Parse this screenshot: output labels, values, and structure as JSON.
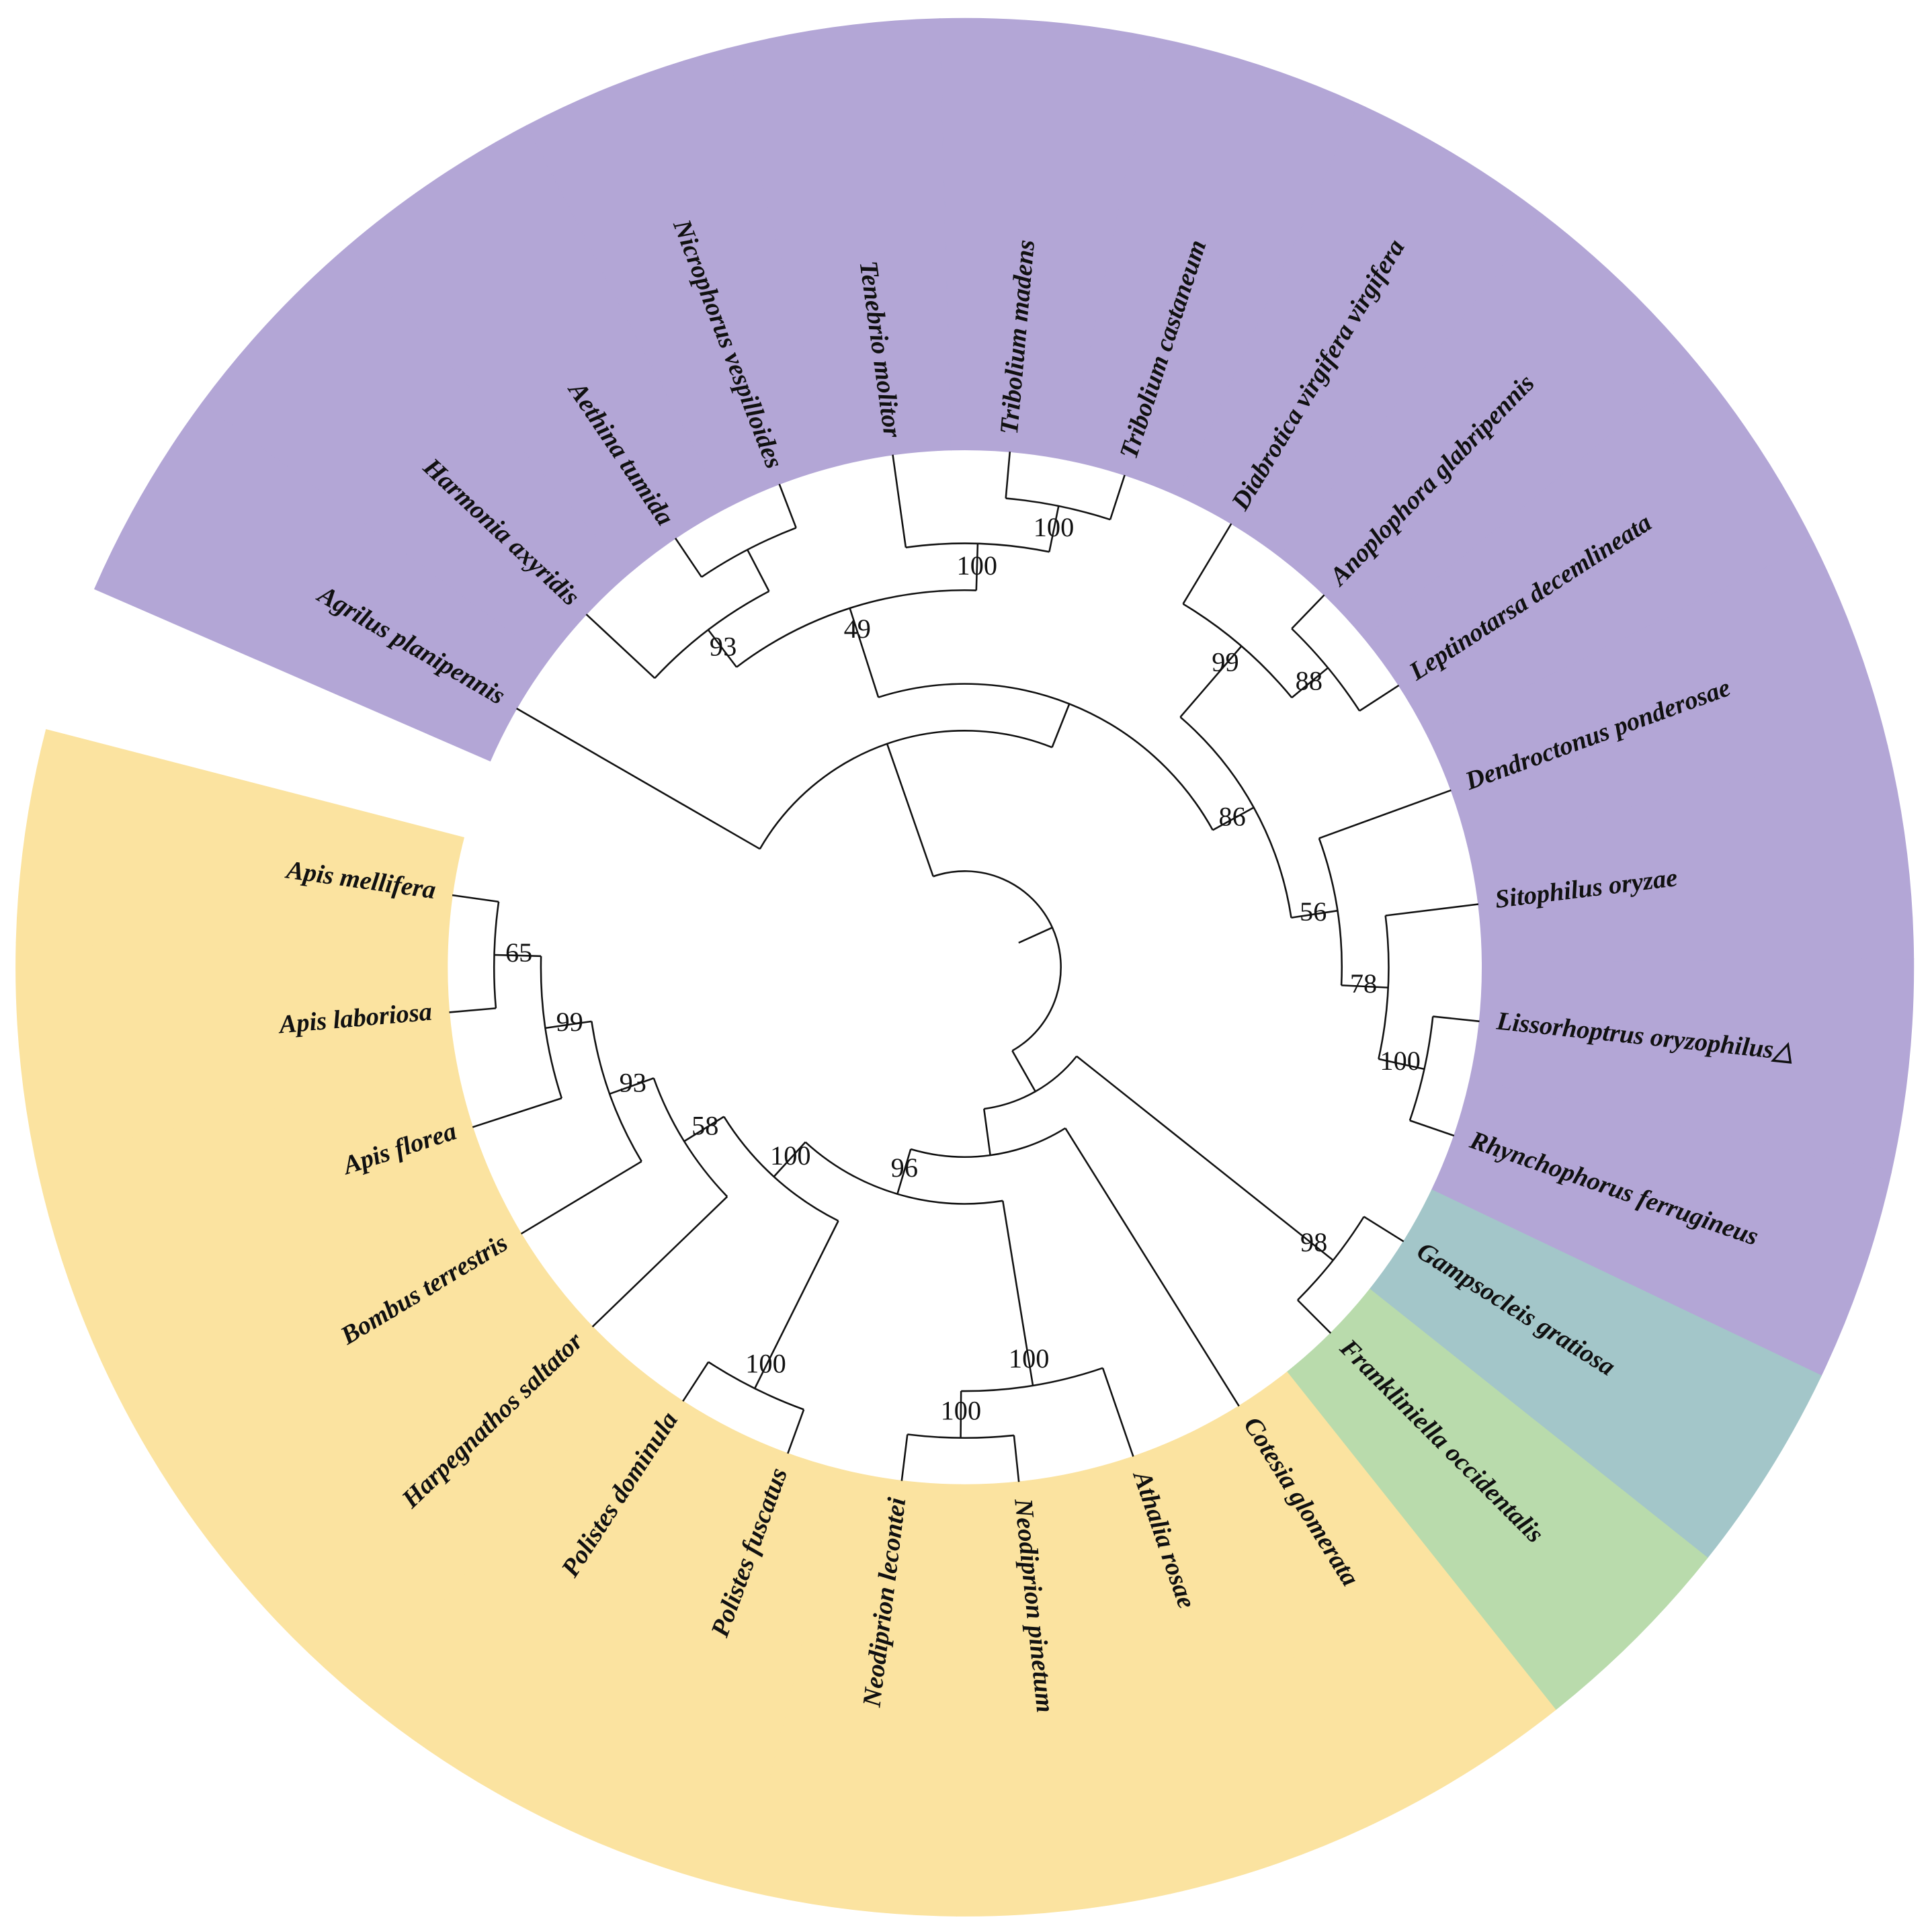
{
  "tree": {
    "children": [
      {
        "children": [
          {
            "name": "Agrilus planipennis",
            "color": "#b3a6d6"
          },
          {
            "children": [
              {
                "support": 49,
                "children": [
                  {
                    "support": 93,
                    "children": [
                      {
                        "name": "Harmonia axyridis",
                        "color": "#b3a6d6"
                      },
                      {
                        "children": [
                          {
                            "name": "Aethina tumida",
                            "color": "#b3a6d6"
                          },
                          {
                            "name": "Nicrophorus vespilloides",
                            "color": "#b3a6d6"
                          }
                        ]
                      }
                    ]
                  },
                  {
                    "support": 100,
                    "children": [
                      {
                        "name": "Tenebrio molitor",
                        "color": "#b3a6d6"
                      },
                      {
                        "support": 100,
                        "children": [
                          {
                            "name": "Tribolium madens",
                            "color": "#b3a6d6"
                          },
                          {
                            "name": "Tribolium castaneum",
                            "color": "#b3a6d6"
                          }
                        ]
                      }
                    ]
                  }
                ]
              },
              {
                "support": 86,
                "children": [
                  {
                    "support": 99,
                    "children": [
                      {
                        "name": "Diabrotica virgifera virgifera",
                        "color": "#b3a6d6"
                      },
                      {
                        "support": 88,
                        "children": [
                          {
                            "name": "Anoplophora glabripennis",
                            "color": "#b3a6d6"
                          },
                          {
                            "name": "Leptinotarsa decemlineata",
                            "color": "#b3a6d6"
                          }
                        ]
                      }
                    ]
                  },
                  {
                    "support": 56,
                    "children": [
                      {
                        "name": "Dendroctonus ponderosae",
                        "color": "#b3a6d6"
                      },
                      {
                        "support": 78,
                        "children": [
                          {
                            "name": "Sitophilus oryzae",
                            "color": "#b3a6d6"
                          },
                          {
                            "support": 100,
                            "children": [
                              {
                                "name": "Lissorhoptrus oryzophilus△",
                                "color": "#b3a6d6"
                              },
                              {
                                "name": "Rhynchophorus ferrugineus",
                                "color": "#b3a6d6"
                              }
                            ]
                          }
                        ]
                      }
                    ]
                  }
                ]
              }
            ]
          }
        ]
      },
      {
        "children": [
          {
            "support": 98,
            "children": [
              {
                "name": "Gampsocleis gratiosa",
                "color": "#a3c6c9"
              },
              {
                "name": "Frankliniella occidentalis",
                "color": "#b9dbac"
              }
            ]
          },
          {
            "children": [
              {
                "name": "Cotesia glomerata",
                "color": "#fbe3a0"
              },
              {
                "support": 96,
                "children": [
                  {
                    "support": 100,
                    "children": [
                      {
                        "name": "Athalia rosae",
                        "color": "#fbe3a0"
                      },
                      {
                        "support": 100,
                        "children": [
                          {
                            "name": "Neodiprion pinetum",
                            "color": "#fbe3a0"
                          },
                          {
                            "name": "Neodiprion lecontei",
                            "color": "#fbe3a0"
                          }
                        ]
                      }
                    ]
                  },
                  {
                    "support": 100,
                    "children": [
                      {
                        "support": 100,
                        "children": [
                          {
                            "name": "Polistes fuscatus",
                            "color": "#fbe3a0"
                          },
                          {
                            "name": "Polistes dominula",
                            "color": "#fbe3a0"
                          }
                        ]
                      },
                      {
                        "support": 58,
                        "children": [
                          {
                            "name": "Harpegnathos saltator",
                            "color": "#fbe3a0"
                          },
                          {
                            "support": 93,
                            "children": [
                              {
                                "name": "Bombus terrestris",
                                "color": "#fbe3a0"
                              },
                              {
                                "support": 99,
                                "children": [
                                  {
                                    "name": "Apis florea",
                                    "color": "#fbe3a0"
                                  },
                                  {
                                    "support": 65,
                                    "children": [
                                      {
                                        "name": "Apis laboriosa",
                                        "color": "#fbe3a0"
                                      },
                                      {
                                        "name": "Apis mellifera",
                                        "color": "#fbe3a0"
                                      }
                                    ]
                                  }
                                ]
                              }
                            ]
                          }
                        ]
                      }
                    ]
                  }
                ]
              }
            ]
          }
        ]
      }
    ]
  }
}
